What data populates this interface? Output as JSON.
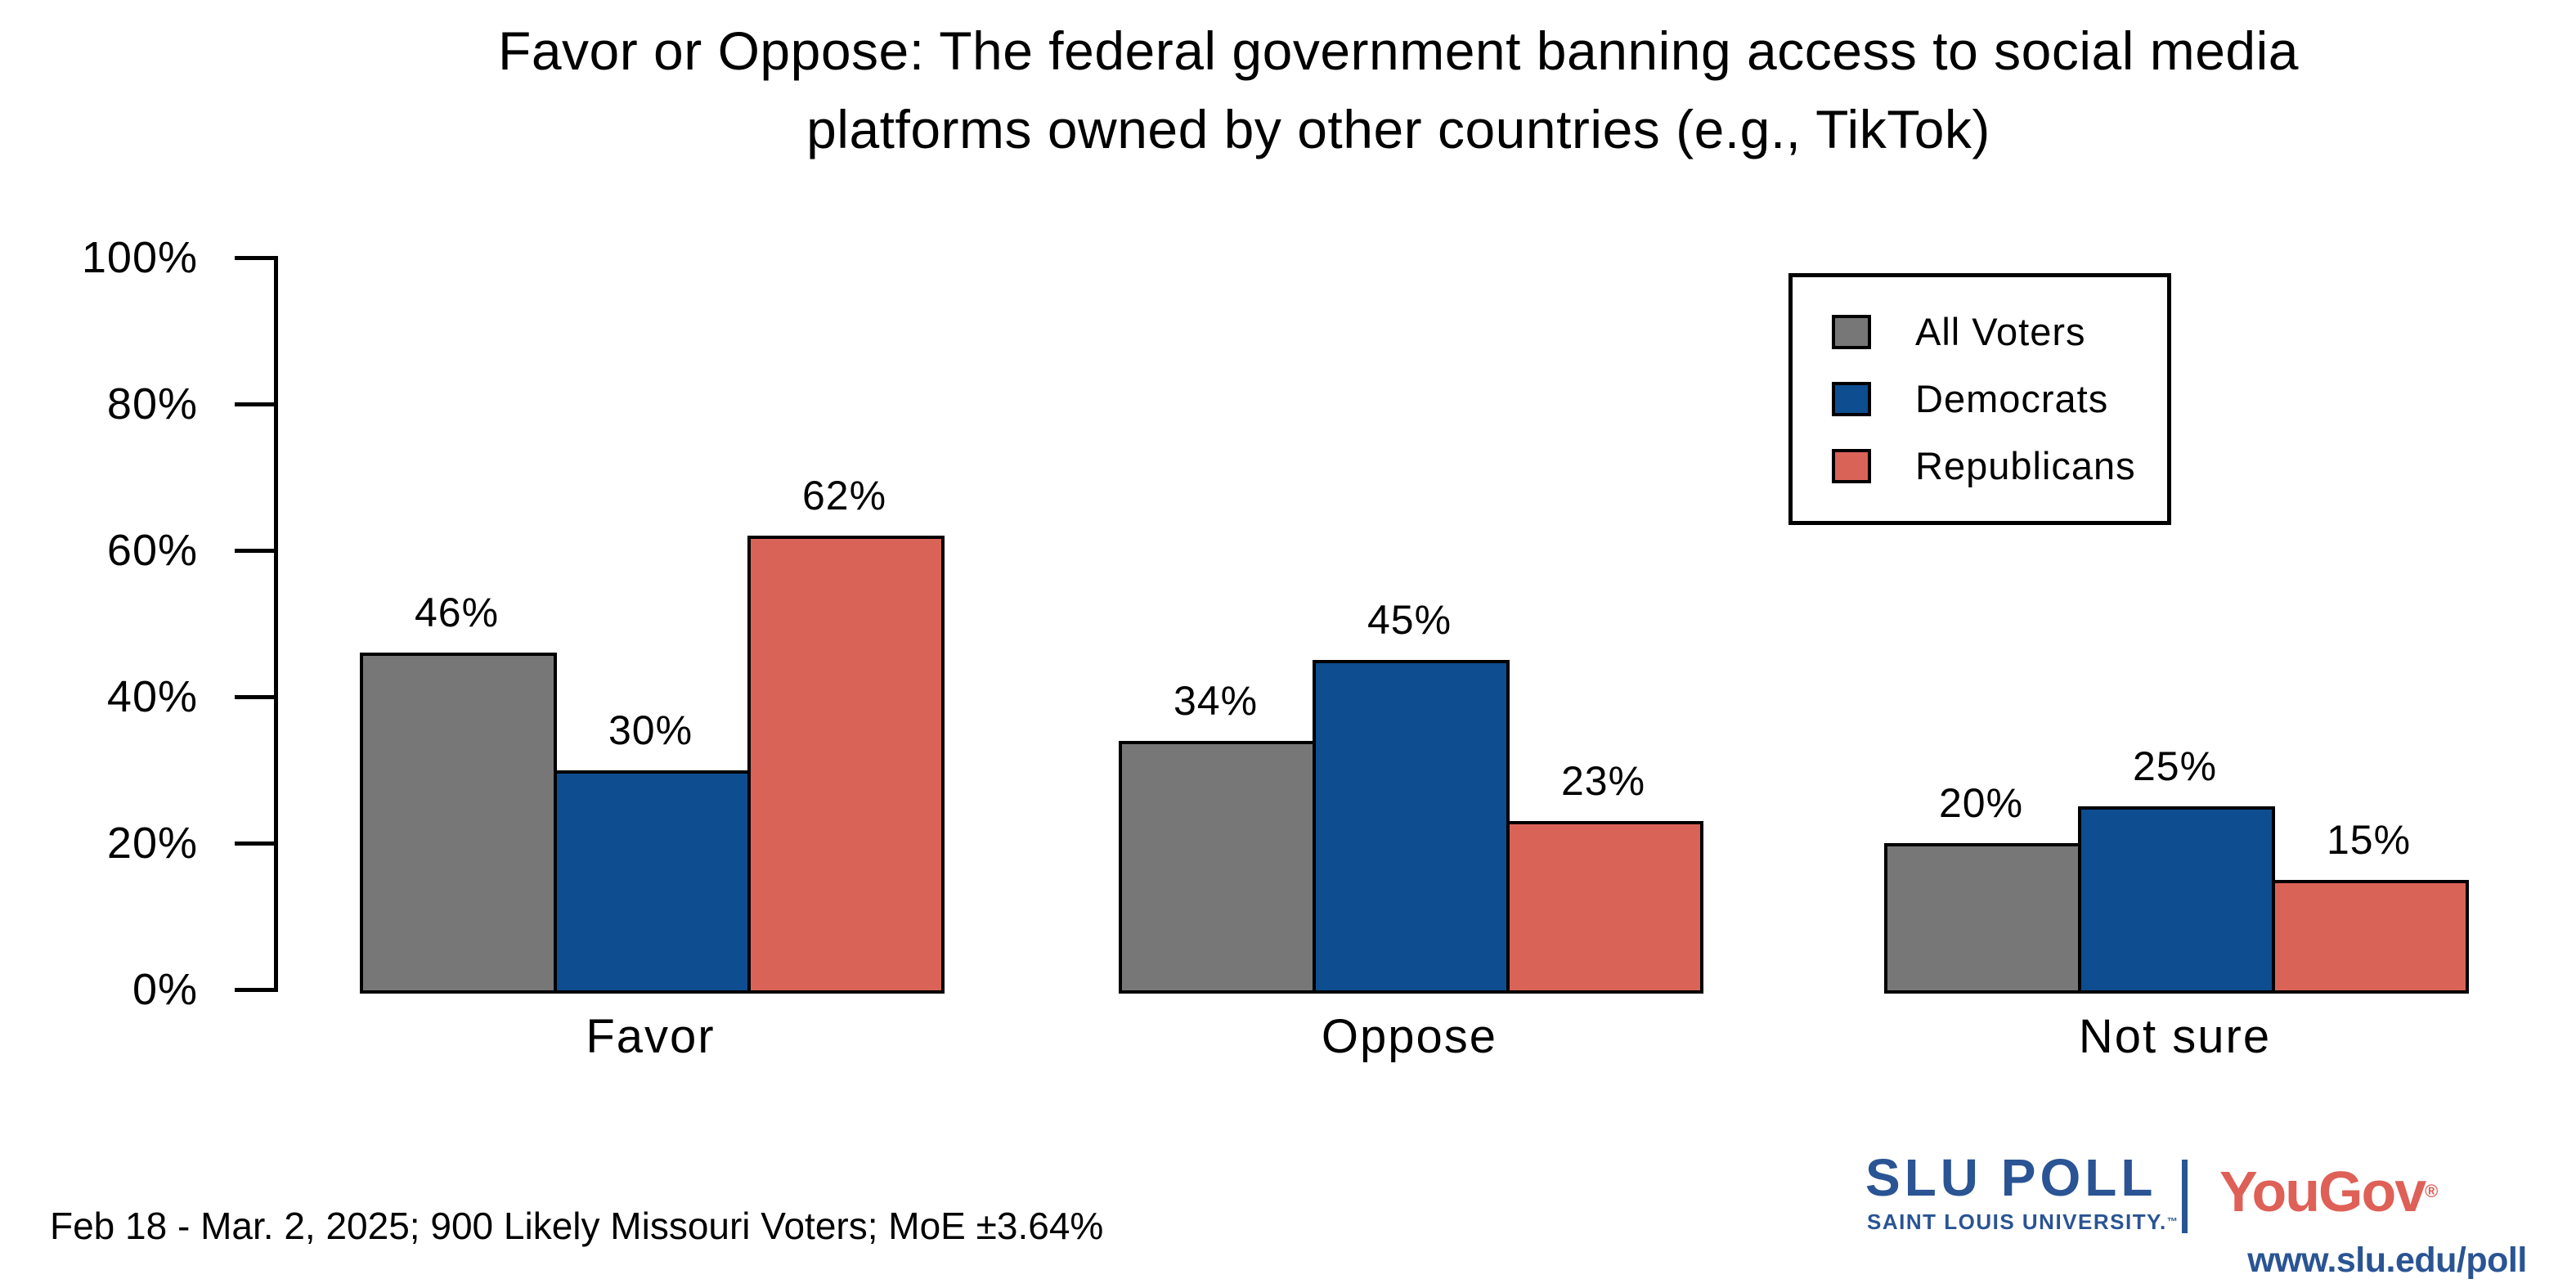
{
  "title": {
    "line1": "Favor or Oppose: The federal government banning access to social media",
    "line2": "platforms owned by other countries (e.g., TikTok)"
  },
  "chart_data": {
    "type": "bar",
    "title": "Favor or Oppose: The federal government banning access to social media platforms owned by other countries (e.g., TikTok)",
    "categories": [
      "Favor",
      "Oppose",
      "Not sure"
    ],
    "series": [
      {
        "name": "All Voters",
        "color": "#777777",
        "values": [
          46,
          34,
          20
        ]
      },
      {
        "name": "Democrats",
        "color": "#0E4D90",
        "values": [
          30,
          45,
          25
        ]
      },
      {
        "name": "Republicans",
        "color": "#DA6358",
        "values": [
          62,
          23,
          15
        ]
      }
    ],
    "value_suffix": "%",
    "ylim": [
      0,
      100
    ],
    "yticks": [
      {
        "value": 0,
        "label": "0%"
      },
      {
        "value": 20,
        "label": "20%"
      },
      {
        "value": 40,
        "label": "40%"
      },
      {
        "value": 60,
        "label": "60%"
      },
      {
        "value": 80,
        "label": "80%"
      },
      {
        "value": 100,
        "label": "100%"
      }
    ],
    "grid": false,
    "legend_position": "upper right",
    "bar_edge_color": "#000000"
  },
  "footnote": "Feb 18 - Mar. 2, 2025; 900 Likely Missouri Voters; MoE ±3.64%",
  "branding": {
    "slu_title": "SLU POLL",
    "slu_subtitle": "SAINT LOUIS UNIVERSITY.",
    "slu_trademark": "™",
    "yougov": "YouGov",
    "yougov_registered": "®",
    "url": "www.slu.edu/poll",
    "slu_blue": "#2A5493",
    "yougov_red": "#DE6057"
  }
}
